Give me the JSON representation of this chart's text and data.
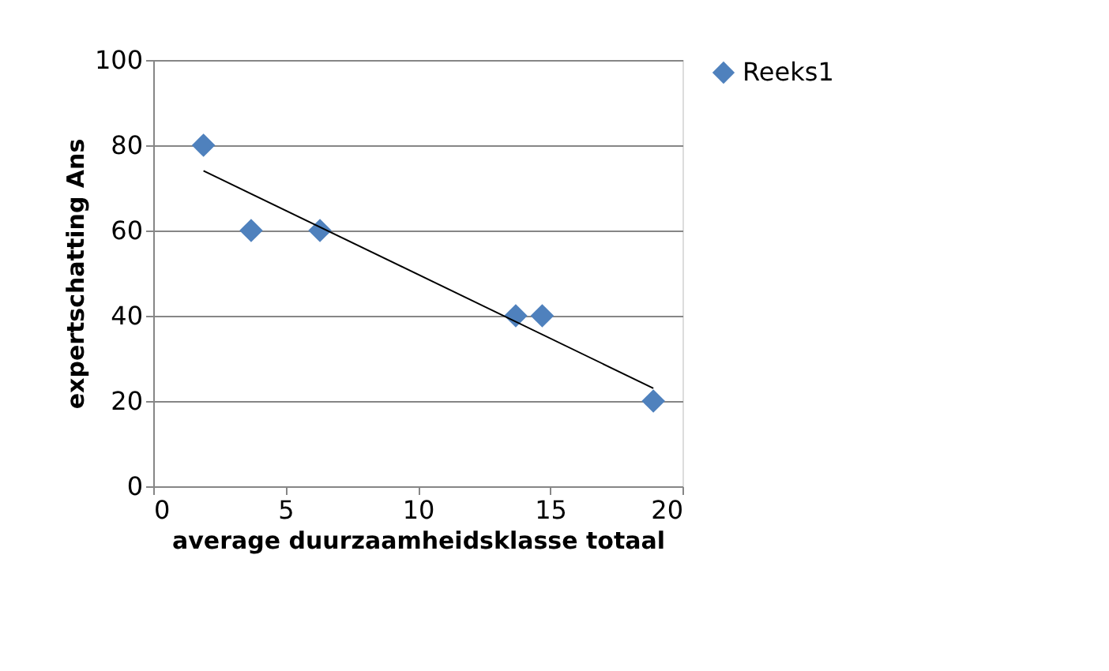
{
  "chart_data": {
    "type": "scatter",
    "xlabel": "average duurzaamheidsklasse  totaal",
    "ylabel": "expertschatting Ans",
    "xlim": [
      0,
      20
    ],
    "xticks": [
      0,
      5,
      10,
      15,
      20
    ],
    "ylim": [
      0,
      100
    ],
    "yticks": [
      0,
      20,
      40,
      60,
      80,
      100
    ],
    "grid": "y",
    "legend": "right",
    "series": [
      {
        "name": "Reeks1",
        "marker": "diamond",
        "color": "#4f81bd",
        "x": [
          1.9,
          3.7,
          6.3,
          13.7,
          14.7,
          18.9
        ],
        "values": [
          80,
          60,
          60,
          40,
          40,
          20
        ]
      },
      {
        "type": "line",
        "marker": "none",
        "line_style": "solid",
        "color": "#000000",
        "x": [
          1.9,
          18.9
        ],
        "values": [
          74,
          23
        ]
      }
    ]
  }
}
